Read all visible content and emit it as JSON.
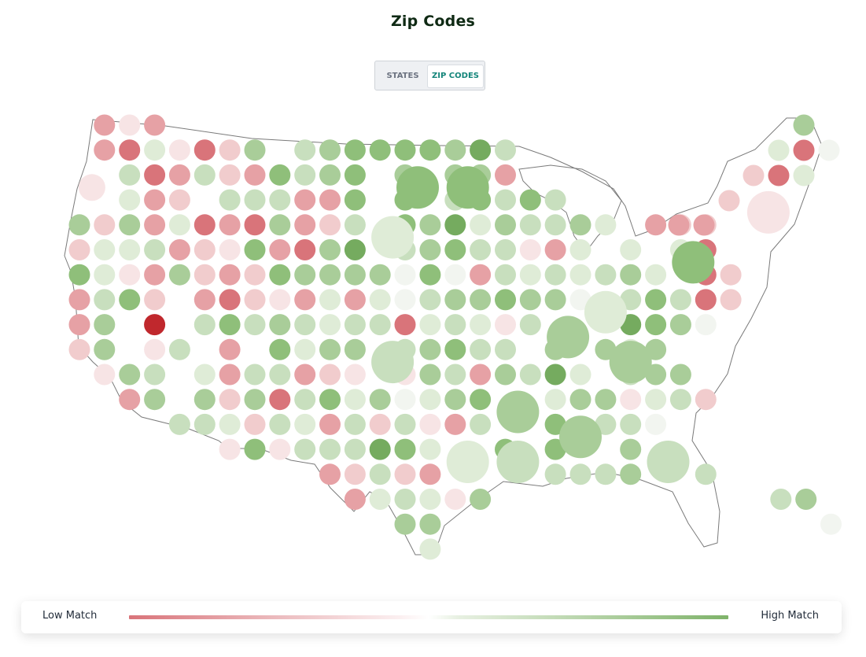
{
  "title": "Zip Codes",
  "toggle": {
    "states_label": "STATES",
    "zip_label": "ZIP CODES",
    "selected": "ZIP CODES"
  },
  "legend": {
    "low_label": "Low Match",
    "high_label": "High Match",
    "low_color": "#d9747a",
    "high_color": "#7fb36a"
  },
  "map": {
    "color_scale": [
      "#c0282d",
      "#d9747a",
      "#f4dbdc",
      "#ffffff",
      "#d4e7cc",
      "#7fb36a"
    ]
  }
}
